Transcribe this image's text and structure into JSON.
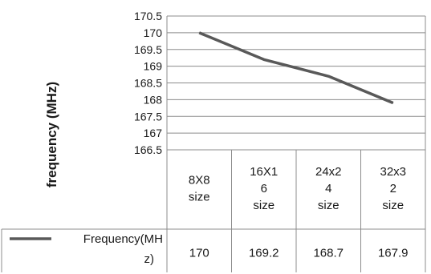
{
  "chart_data": {
    "type": "line",
    "categories": [
      [
        "8X8",
        "size"
      ],
      [
        "16X1",
        "6",
        "size"
      ],
      [
        "24x2",
        "4",
        "size"
      ],
      [
        "32x3",
        "2",
        "size"
      ]
    ],
    "series": [
      {
        "name": [
          "Frequency(MH",
          "z)"
        ],
        "values": [
          170,
          169.2,
          168.7,
          167.9
        ],
        "color": "#595959"
      }
    ],
    "data_table": [
      "170",
      "169.2",
      "168.7",
      "167.9"
    ],
    "ylabel": "frequency (MHz)",
    "ylim": [
      166.5,
      170.5
    ],
    "yticks": [
      "170.5",
      "170",
      "169.5",
      "169",
      "168.5",
      "168",
      "167.5",
      "167",
      "166.5"
    ],
    "grid": true,
    "legend": "data-table"
  }
}
